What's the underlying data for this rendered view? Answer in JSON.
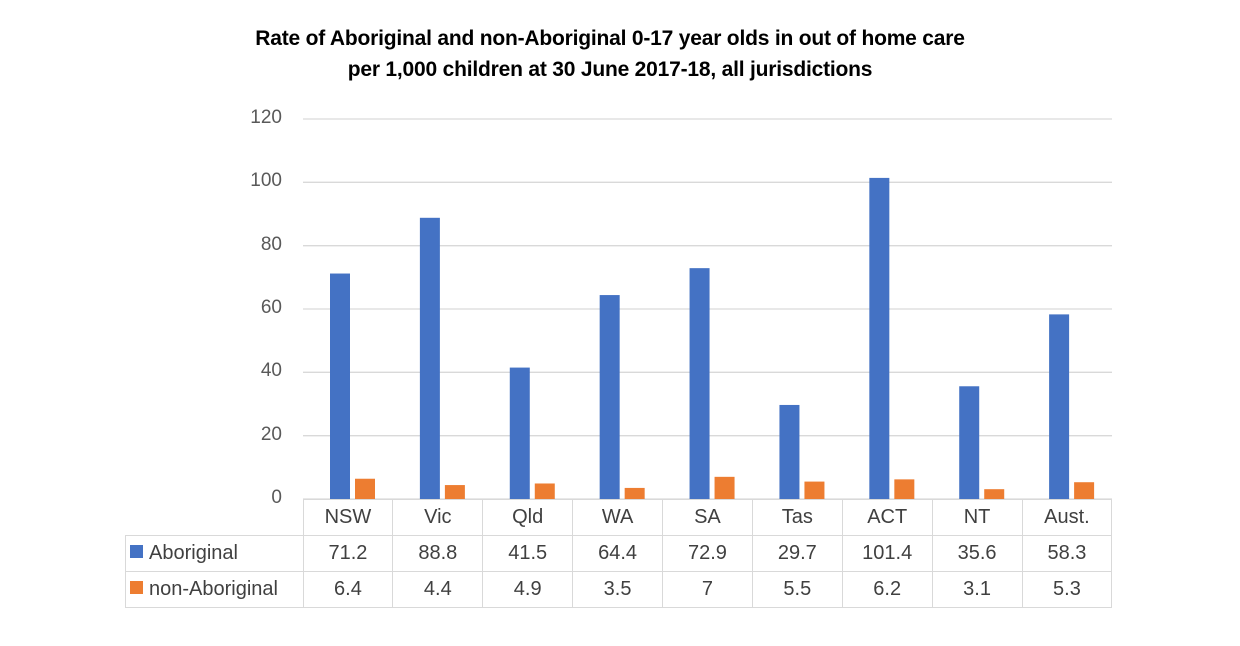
{
  "chart_data": {
    "type": "bar",
    "title": "Rate of Aboriginal and non-Aboriginal 0-17 year olds in out of home care",
    "subtitle": "per 1,000 children at 30 June 2017-18, all jurisdictions",
    "xlabel": "",
    "ylabel": "",
    "ylim": [
      0,
      120
    ],
    "yticks": [
      0,
      20,
      40,
      60,
      80,
      100,
      120
    ],
    "grid": true,
    "legend_position": "data-table",
    "categories": [
      "NSW",
      "Vic",
      "Qld",
      "WA",
      "SA",
      "Tas",
      "ACT",
      "NT",
      "Aust."
    ],
    "series": [
      {
        "name": "Aboriginal",
        "color": "#4472c4",
        "values": [
          71.2,
          88.8,
          41.5,
          64.4,
          72.9,
          29.7,
          101.4,
          35.6,
          58.3
        ]
      },
      {
        "name": "non-Aboriginal",
        "color": "#ed7d31",
        "values": [
          6.4,
          4.4,
          4.9,
          3.5,
          7,
          5.5,
          6.2,
          3.1,
          5.3
        ]
      }
    ]
  }
}
